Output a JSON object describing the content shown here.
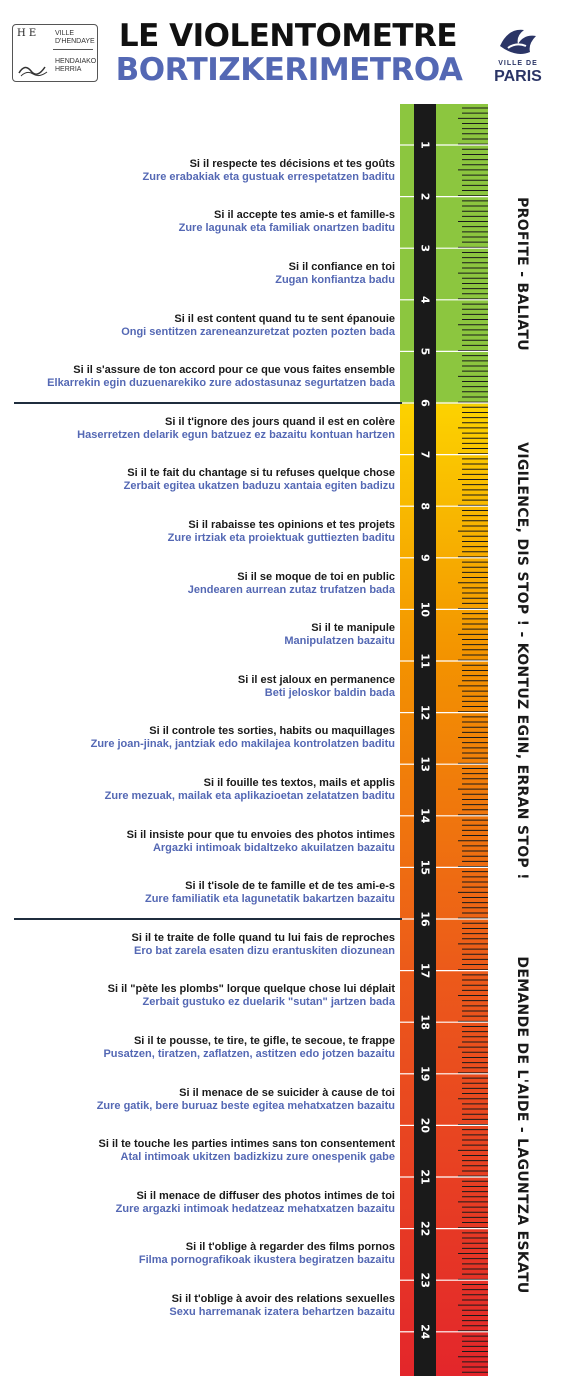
{
  "header": {
    "title": "LE VIOLENTOMETRE",
    "title_basque": "BORTIZKERIMETROA",
    "hendaye_logo": {
      "mono": "H E",
      "line1": "VILLE",
      "line2": "D'HENDAYE",
      "line3": "HENDAIAKO",
      "line4": "HERRIA"
    },
    "paris_logo": {
      "ville": "VILLE DE",
      "name": "PARIS"
    }
  },
  "colors": {
    "green": "#8cc63f",
    "yellow": "#fcd200",
    "orange": "#f39200",
    "red": "#e3262b",
    "ruler_dark": "#1a1a1a",
    "text_fr": "#1a1a1a",
    "text_eu": "#5468b4"
  },
  "scale": {
    "numbers": [
      "1",
      "2",
      "3",
      "4",
      "5",
      "6",
      "7",
      "8",
      "9",
      "10",
      "11",
      "12",
      "13",
      "14",
      "15",
      "16",
      "17",
      "18",
      "19",
      "20",
      "21",
      "22",
      "23",
      "24"
    ]
  },
  "zones": [
    {
      "label": "PROFITE - BALIATU",
      "from": 1,
      "to": 6
    },
    {
      "label": "VIGILENCE, DIS STOP ! - KONTUZ EGIN, ERRAN STOP !",
      "from": 6,
      "to": 16
    },
    {
      "label": "DEMANDE DE L'AIDE - LAGUNTZA ESKATU",
      "from": 16,
      "to": 24
    }
  ],
  "items": [
    {
      "level": 1,
      "fr": "Si il respecte tes décisions et tes goûts",
      "eu": "Zure erabakiak eta gustuak errespetatzen baditu"
    },
    {
      "level": 2,
      "fr": "Si il accepte tes amie-s et famille-s",
      "eu": "Zure lagunak eta familiak onartzen baditu"
    },
    {
      "level": 3,
      "fr": "Si il confiance en toi",
      "eu": "Zugan konfiantza badu"
    },
    {
      "level": 4,
      "fr": "Si il est content quand tu te sent épanouie",
      "eu": "Ongi sentitzen zareneanzuretzat pozten pozten bada"
    },
    {
      "level": 5,
      "fr": "Si il s'assure de ton accord pour ce que vous faites ensemble",
      "eu": "Elkarrekin egin duzuenarekiko zure adostasunaz segurtatzen bada"
    },
    {
      "level": 6,
      "fr": "Si il t'ignore des jours quand il est en colère",
      "eu": "Haserretzen delarik egun batzuez ez bazaitu kontuan hartzen"
    },
    {
      "level": 7,
      "fr": "Si il te fait du chantage si tu refuses quelque chose",
      "eu": "Zerbait egitea ukatzen baduzu xantaia egiten badizu"
    },
    {
      "level": 8,
      "fr": "Si il rabaisse tes opinions et tes projets",
      "eu": "Zure irtziak eta proiektuak guttiezten baditu"
    },
    {
      "level": 9,
      "fr": "Si il se moque de toi en public",
      "eu": "Jendearen aurrean zutaz trufatzen bada"
    },
    {
      "level": 10,
      "fr": "Si il te manipule",
      "eu": "Manipulatzen bazaitu"
    },
    {
      "level": 11,
      "fr": "Si il est jaloux en permanence",
      "eu": "Beti jeloskor baldin bada"
    },
    {
      "level": 12,
      "fr": "Si il controle tes sorties, habits ou maquillages",
      "eu": "Zure joan-jinak, jantziak edo makilajea kontrolatzen baditu"
    },
    {
      "level": 13,
      "fr": "Si il fouille tes textos, mails et applis",
      "eu": "Zure mezuak, mailak eta aplikazioetan zelatatzen baditu"
    },
    {
      "level": 14,
      "fr": "Si il insiste pour que tu envoies des photos intimes",
      "eu": "Argazki intimoak bidaltzeko akuilatzen bazaitu"
    },
    {
      "level": 15,
      "fr": "Si il t'isole de te famille et de tes ami-e-s",
      "eu": "Zure familiatik eta lagunetatik bakartzen bazaitu"
    },
    {
      "level": 16,
      "fr": "Si il te traite de folle quand tu lui fais de reproches",
      "eu": "Ero bat zarela esaten dizu erantuskiten diozunean"
    },
    {
      "level": 17,
      "fr": "Si il \"pète les plombs\" lorque quelque chose lui déplait",
      "eu": "Zerbait gustuko ez duelarik \"sutan\" jartzen bada"
    },
    {
      "level": 18,
      "fr": "Si il te pousse, te tire, te gifle, te secoue, te frappe",
      "eu": "Pusatzen, tiratzen, zaflatzen, astitzen edo jotzen bazaitu"
    },
    {
      "level": 19,
      "fr": "Si il menace de se suicider à cause de toi",
      "eu": "Zure gatik, bere buruaz beste egitea mehatxatzen bazaitu"
    },
    {
      "level": 20,
      "fr": "Si il te touche les parties intimes sans ton consentement",
      "eu": "Atal intimoak ukitzen badizkizu zure onespenik gabe"
    },
    {
      "level": 21,
      "fr": "Si il menace de diffuser des photos intimes de toi",
      "eu": "Zure argazki intimoak hedatzeaz mehatxatzen bazaitu"
    },
    {
      "level": 22,
      "fr": "Si il t'oblige à regarder des films pornos",
      "eu": "Filma pornografikoak ikustera begiratzen bazaitu"
    },
    {
      "level": 23,
      "fr": "Si il t'oblige à avoir des relations sexuelles",
      "eu": "Sexu harremanak izatera behartzen bazaitu"
    }
  ]
}
